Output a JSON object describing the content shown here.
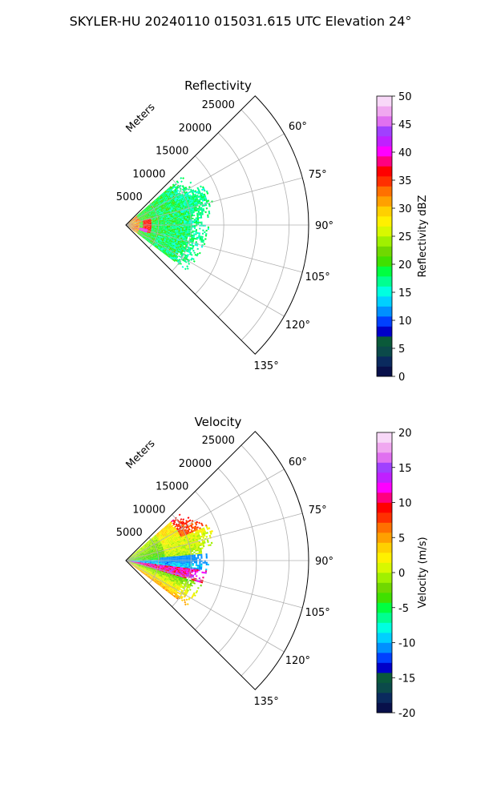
{
  "figure_title": "SKYLER-HU  20240110  015031.615 UTC Elevation 24°",
  "chart_data": [
    {
      "type": "heatmap",
      "projection": "polar-sector",
      "title": "Reflectivity",
      "theta_range_deg": [
        45,
        135
      ],
      "theta_ticks": [
        "60°",
        "75°",
        "90°",
        "105°",
        "120°",
        "135°"
      ],
      "radial_label": "Meters",
      "radial_ticks": [
        "5000",
        "10000",
        "15000",
        "20000",
        "25000"
      ],
      "radial_range_m": [
        0,
        28000
      ],
      "data_range_m": [
        0,
        14000
      ],
      "grid": true,
      "colorbar": {
        "label": "Reflectivity dBZ",
        "ticks": [
          "0",
          "5",
          "10",
          "15",
          "20",
          "25",
          "30",
          "35",
          "40",
          "45",
          "50"
        ],
        "range": [
          0,
          50
        ]
      }
    },
    {
      "type": "heatmap",
      "projection": "polar-sector",
      "title": "Velocity",
      "theta_range_deg": [
        45,
        135
      ],
      "theta_ticks": [
        "60°",
        "75°",
        "90°",
        "105°",
        "120°",
        "135°"
      ],
      "radial_label": "Meters",
      "radial_ticks": [
        "5000",
        "10000",
        "15000",
        "20000",
        "25000"
      ],
      "radial_range_m": [
        0,
        28000
      ],
      "data_range_m": [
        0,
        14000
      ],
      "grid": true,
      "colorbar": {
        "label": "Velocity (m/s)",
        "ticks": [
          "-20",
          "-15",
          "-10",
          "-5",
          "0",
          "5",
          "10",
          "15",
          "20"
        ],
        "range": [
          -20,
          20
        ]
      }
    }
  ],
  "colormap": [
    "#08104a",
    "#0a2a5e",
    "#0b4a4a",
    "#0a5a3a",
    "#0000c8",
    "#0040ff",
    "#0090ff",
    "#00d0ff",
    "#00ffe0",
    "#00ff90",
    "#00ff40",
    "#40e000",
    "#70d800",
    "#a0f000",
    "#d8f800",
    "#fff000",
    "#ffd000",
    "#ffa000",
    "#ff7000",
    "#ff3000",
    "#ff0000",
    "#ff0080",
    "#ff00ff",
    "#c020ff",
    "#a040ff",
    "#e070f0",
    "#f0a8f0",
    "#f8d8f8"
  ]
}
